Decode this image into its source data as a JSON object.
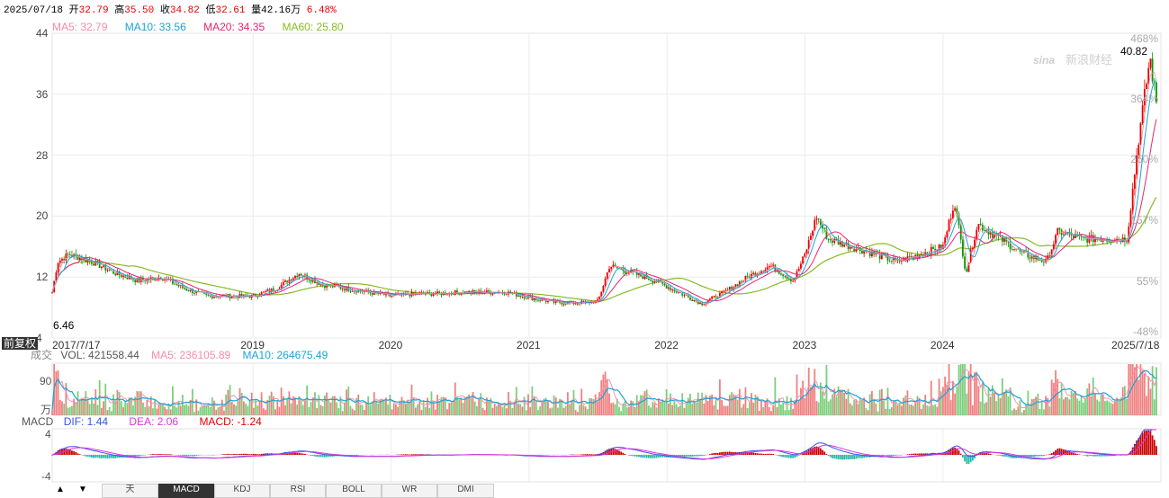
{
  "header": {
    "date": "2025/07/18",
    "open_label": "开",
    "open": "32.79",
    "high_label": "高",
    "high": "35.50",
    "close_label": "收",
    "close": "34.82",
    "low_label": "低",
    "low": "32.61",
    "vol_label": "量",
    "vol": "42.16万",
    "change": "6.48%"
  },
  "ma_legend": {
    "ma5": "MA5: 32.79",
    "ma10": "MA10: 33.56",
    "ma20": "MA20: 34.35",
    "ma60": "MA60: 25.80"
  },
  "watermark": {
    "brand": "新浪财经",
    "sub": "sina"
  },
  "main": {
    "y_ticks": [
      "44",
      "36",
      "28",
      "20",
      "12",
      "4"
    ],
    "pct_ticks": [
      "468%",
      "364%",
      "260%",
      "157%",
      "55%",
      "-48%"
    ],
    "max_label": "40.82",
    "min_label": "6.46",
    "adjust_label": "前复权",
    "x_ticks": [
      "2017/7/17",
      "2019",
      "2020",
      "2021",
      "2022",
      "2023",
      "2024",
      "2025/7/18"
    ]
  },
  "volume": {
    "label": "成交",
    "vol": "VOL: 421558.44",
    "ma5": "MA5: 236105.89",
    "ma10": "MA10: 264675.49",
    "y_top": "90",
    "unit": "万"
  },
  "macd": {
    "label": "MACD",
    "dif": "DIF: 1.44",
    "dea": "DEA: 2.06",
    "macd": "MACD: -1.24",
    "y_top": "4",
    "y_bottom": "-4"
  },
  "tabs": [
    "天",
    "MACD",
    "KDJ",
    "RSI",
    "BOLL",
    "WR",
    "DMI"
  ],
  "nav": {
    "up": "▲",
    "down": "▼"
  },
  "colors": {
    "up": "#e60000",
    "down": "#009900",
    "ma5": "#f58ca8",
    "ma10": "#1aa3d9",
    "ma20": "#e6256f",
    "ma60": "#88bb22",
    "dif": "#3355ee",
    "dea": "#dd33dd"
  },
  "chart_data": {
    "type": "candlestick",
    "title": "",
    "y_range": [
      4,
      44
    ],
    "x_range": [
      "2017/7/17",
      "2025/7/18"
    ],
    "close_series": [
      {
        "date": "2017/7/17",
        "close": 10
      },
      {
        "date": "2017/8",
        "close": 14
      },
      {
        "date": "2017/9",
        "close": 15
      },
      {
        "date": "2017/11",
        "close": 14
      },
      {
        "date": "2018/1",
        "close": 12.5
      },
      {
        "date": "2018/3",
        "close": 11.5
      },
      {
        "date": "2018/5",
        "close": 12
      },
      {
        "date": "2018/7",
        "close": 10.5
      },
      {
        "date": "2018/9",
        "close": 9.5
      },
      {
        "date": "2018/11",
        "close": 9.5
      },
      {
        "date": "2019/1",
        "close": 9.5
      },
      {
        "date": "2019/3",
        "close": 10.5
      },
      {
        "date": "2019/5",
        "close": 12.5
      },
      {
        "date": "2019/7",
        "close": 11
      },
      {
        "date": "2019/9",
        "close": 10.5
      },
      {
        "date": "2019/11",
        "close": 10
      },
      {
        "date": "2020/1",
        "close": 9.5
      },
      {
        "date": "2020/3",
        "close": 9.8
      },
      {
        "date": "2020/5",
        "close": 9.8
      },
      {
        "date": "2020/7",
        "close": 10
      },
      {
        "date": "2020/9",
        "close": 10
      },
      {
        "date": "2020/11",
        "close": 10
      },
      {
        "date": "2021/1",
        "close": 9.3
      },
      {
        "date": "2021/3",
        "close": 8.7
      },
      {
        "date": "2021/5",
        "close": 8.6
      },
      {
        "date": "2021/7",
        "close": 8.8
      },
      {
        "date": "2021/8",
        "close": 13.5
      },
      {
        "date": "2021/10",
        "close": 12.5
      },
      {
        "date": "2021/12",
        "close": 11.5
      },
      {
        "date": "2022/2",
        "close": 10
      },
      {
        "date": "2022/4",
        "close": 8.5
      },
      {
        "date": "2022/6",
        "close": 10
      },
      {
        "date": "2022/8",
        "close": 12
      },
      {
        "date": "2022/10",
        "close": 13.5
      },
      {
        "date": "2022/12",
        "close": 11.5
      },
      {
        "date": "2023/1",
        "close": 15
      },
      {
        "date": "2023/2",
        "close": 20
      },
      {
        "date": "2023/3",
        "close": 17
      },
      {
        "date": "2023/5",
        "close": 16
      },
      {
        "date": "2023/7",
        "close": 15
      },
      {
        "date": "2023/9",
        "close": 14
      },
      {
        "date": "2023/11",
        "close": 15
      },
      {
        "date": "2024/1",
        "close": 16
      },
      {
        "date": "2024/2",
        "close": 22
      },
      {
        "date": "2024/3",
        "close": 12.5
      },
      {
        "date": "2024/4",
        "close": 19
      },
      {
        "date": "2024/6",
        "close": 17
      },
      {
        "date": "2024/8",
        "close": 15
      },
      {
        "date": "2024/10",
        "close": 14
      },
      {
        "date": "2024/11",
        "close": 18
      },
      {
        "date": "2025/1",
        "close": 17
      },
      {
        "date": "2025/3",
        "close": 17
      },
      {
        "date": "2025/5",
        "close": 17
      },
      {
        "date": "2025/6",
        "close": 30
      },
      {
        "date": "2025/7/1",
        "close": 40.82
      },
      {
        "date": "2025/7/18",
        "close": 34.82
      }
    ]
  }
}
